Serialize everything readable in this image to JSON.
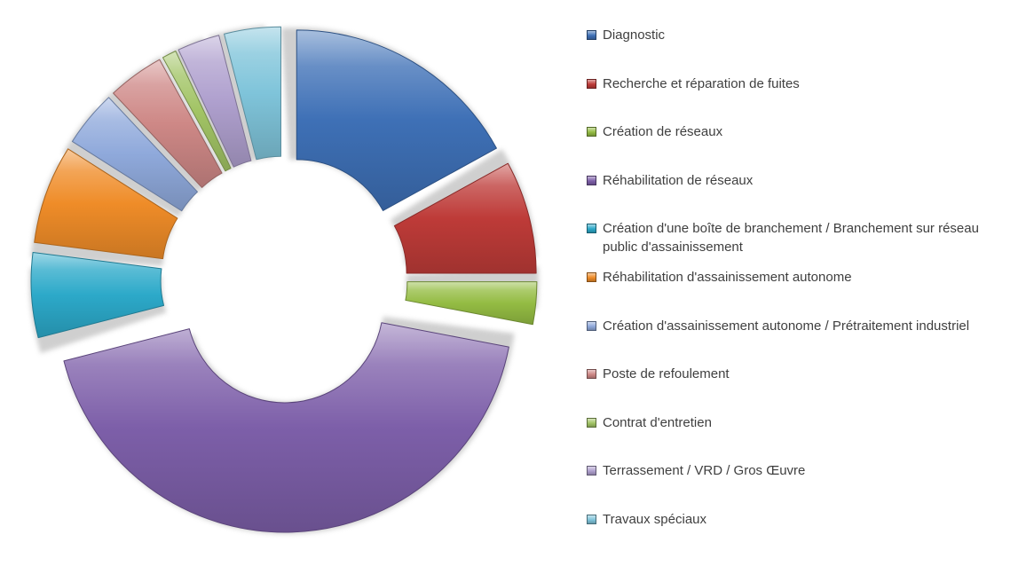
{
  "chart_data": {
    "type": "pie",
    "variant": "exploded-doughnut-3d",
    "title": "",
    "legend_position": "right",
    "background_color": "#ffffff",
    "shadow_color": "#c7c7c7",
    "legend_text_color": "#3f3f3f",
    "hole_ratio": 0.43,
    "start_angle_deg": 0,
    "direction": "clockwise",
    "values_are_estimated_percent": true,
    "series": [
      {
        "label": "Diagnostic",
        "value": 17,
        "color": "#3e70b6"
      },
      {
        "label": "Recherche et réparation de fuites",
        "value": 8,
        "color": "#be3b38"
      },
      {
        "label": "Création de réseaux",
        "value": 3,
        "color": "#94bc43"
      },
      {
        "label": "Réhabilitation de réseaux",
        "value": 43,
        "color": "#7d5fa9"
      },
      {
        "label": "Création d'une boîte de branchement / Branchement sur réseau public d'assainissement",
        "value": 6,
        "color": "#2ca9c9"
      },
      {
        "label": "Réhabilitation d'assainissement autonome",
        "value": 7,
        "color": "#ef8c28"
      },
      {
        "label": "Création d'assainissement autonome / Prétraitement industriel",
        "value": 4,
        "color": "#8fa9db"
      },
      {
        "label": "Poste de refoulement",
        "value": 4,
        "color": "#ce8886"
      },
      {
        "label": "Contrat d'entretien",
        "value": 1,
        "color": "#a2c465"
      },
      {
        "label": "Terrassement / VRD / Gros Œuvre",
        "value": 3,
        "color": "#afa0ce"
      },
      {
        "label": "Travaux spéciaux",
        "value": 4,
        "color": "#7fc4da"
      }
    ]
  }
}
